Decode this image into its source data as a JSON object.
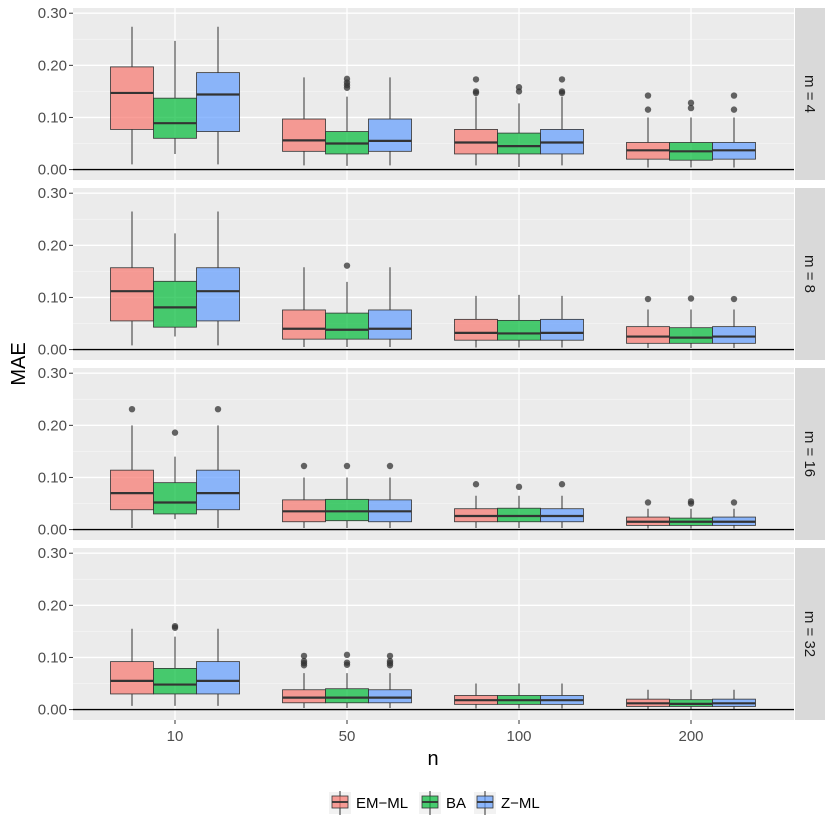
{
  "chart_data": {
    "type": "boxplot",
    "xlabel": "n",
    "ylabel": "MAE",
    "ylim": [
      -0.02,
      0.31
    ],
    "yticks": [
      "0.00",
      "0.10",
      "0.20",
      "0.30"
    ],
    "ytick_values": [
      0.0,
      0.1,
      0.2,
      0.3
    ],
    "categories": [
      "10",
      "50",
      "100",
      "200"
    ],
    "legend_position": "bottom",
    "grid": true,
    "series": [
      {
        "name": "EM−ML",
        "color": "#F8766D"
      },
      {
        "name": "BA",
        "color": "#00BA38"
      },
      {
        "name": "Z−ML",
        "color": "#619CFF"
      }
    ],
    "panels": [
      {
        "label": "m = 4",
        "groups": [
          [
            {
              "min": 0.01,
              "q1": 0.077,
              "median": 0.147,
              "q3": 0.197,
              "max": 0.274,
              "outliers": []
            },
            {
              "min": 0.03,
              "q1": 0.06,
              "median": 0.089,
              "q3": 0.137,
              "max": 0.247,
              "outliers": []
            },
            {
              "min": 0.01,
              "q1": 0.073,
              "median": 0.144,
              "q3": 0.186,
              "max": 0.274,
              "outliers": []
            }
          ],
          [
            {
              "min": 0.008,
              "q1": 0.035,
              "median": 0.056,
              "q3": 0.097,
              "max": 0.177,
              "outliers": []
            },
            {
              "min": 0.007,
              "q1": 0.03,
              "median": 0.05,
              "q3": 0.073,
              "max": 0.14,
              "outliers": [
                0.157,
                0.162,
                0.167,
                0.174
              ]
            },
            {
              "min": 0.008,
              "q1": 0.035,
              "median": 0.055,
              "q3": 0.097,
              "max": 0.177,
              "outliers": []
            }
          ],
          [
            {
              "min": 0.008,
              "q1": 0.03,
              "median": 0.052,
              "q3": 0.077,
              "max": 0.14,
              "outliers": [
                0.147,
                0.15,
                0.173
              ]
            },
            {
              "min": 0.005,
              "q1": 0.03,
              "median": 0.045,
              "q3": 0.07,
              "max": 0.127,
              "outliers": [
                0.15,
                0.158
              ]
            },
            {
              "min": 0.008,
              "q1": 0.03,
              "median": 0.052,
              "q3": 0.077,
              "max": 0.14,
              "outliers": [
                0.147,
                0.15,
                0.173
              ]
            }
          ],
          [
            {
              "min": 0.004,
              "q1": 0.02,
              "median": 0.037,
              "q3": 0.052,
              "max": 0.1,
              "outliers": [
                0.115,
                0.142
              ]
            },
            {
              "min": 0.004,
              "q1": 0.018,
              "median": 0.035,
              "q3": 0.052,
              "max": 0.1,
              "outliers": [
                0.118,
                0.128
              ]
            },
            {
              "min": 0.004,
              "q1": 0.02,
              "median": 0.037,
              "q3": 0.052,
              "max": 0.1,
              "outliers": [
                0.115,
                0.142
              ]
            }
          ]
        ]
      },
      {
        "label": "m = 8",
        "groups": [
          [
            {
              "min": 0.008,
              "q1": 0.055,
              "median": 0.112,
              "q3": 0.157,
              "max": 0.265,
              "outliers": []
            },
            {
              "min": 0.025,
              "q1": 0.043,
              "median": 0.081,
              "q3": 0.131,
              "max": 0.223,
              "outliers": []
            },
            {
              "min": 0.008,
              "q1": 0.055,
              "median": 0.112,
              "q3": 0.157,
              "max": 0.265,
              "outliers": []
            }
          ],
          [
            {
              "min": 0.005,
              "q1": 0.02,
              "median": 0.04,
              "q3": 0.076,
              "max": 0.158,
              "outliers": []
            },
            {
              "min": 0.005,
              "q1": 0.02,
              "median": 0.038,
              "q3": 0.07,
              "max": 0.13,
              "outliers": [
                0.161
              ]
            },
            {
              "min": 0.005,
              "q1": 0.02,
              "median": 0.04,
              "q3": 0.076,
              "max": 0.158,
              "outliers": []
            }
          ],
          [
            {
              "min": 0.004,
              "q1": 0.018,
              "median": 0.032,
              "q3": 0.058,
              "max": 0.103,
              "outliers": []
            },
            {
              "min": 0.004,
              "q1": 0.018,
              "median": 0.031,
              "q3": 0.056,
              "max": 0.105,
              "outliers": []
            },
            {
              "min": 0.004,
              "q1": 0.018,
              "median": 0.032,
              "q3": 0.058,
              "max": 0.103,
              "outliers": []
            }
          ],
          [
            {
              "min": 0.003,
              "q1": 0.012,
              "median": 0.025,
              "q3": 0.044,
              "max": 0.077,
              "outliers": [
                0.097
              ]
            },
            {
              "min": 0.003,
              "q1": 0.012,
              "median": 0.023,
              "q3": 0.042,
              "max": 0.077,
              "outliers": [
                0.098
              ]
            },
            {
              "min": 0.003,
              "q1": 0.012,
              "median": 0.025,
              "q3": 0.044,
              "max": 0.077,
              "outliers": [
                0.097
              ]
            }
          ]
        ]
      },
      {
        "label": "m = 16",
        "groups": [
          [
            {
              "min": 0.003,
              "q1": 0.038,
              "median": 0.07,
              "q3": 0.114,
              "max": 0.2,
              "outliers": [
                0.231
              ]
            },
            {
              "min": 0.02,
              "q1": 0.03,
              "median": 0.052,
              "q3": 0.09,
              "max": 0.14,
              "outliers": [
                0.186
              ]
            },
            {
              "min": 0.003,
              "q1": 0.038,
              "median": 0.07,
              "q3": 0.114,
              "max": 0.2,
              "outliers": [
                0.231
              ]
            }
          ],
          [
            {
              "min": 0.003,
              "q1": 0.015,
              "median": 0.035,
              "q3": 0.057,
              "max": 0.1,
              "outliers": [
                0.122
              ]
            },
            {
              "min": 0.003,
              "q1": 0.017,
              "median": 0.035,
              "q3": 0.058,
              "max": 0.1,
              "outliers": [
                0.122
              ]
            },
            {
              "min": 0.003,
              "q1": 0.015,
              "median": 0.035,
              "q3": 0.057,
              "max": 0.1,
              "outliers": [
                0.122
              ]
            }
          ],
          [
            {
              "min": 0.003,
              "q1": 0.015,
              "median": 0.026,
              "q3": 0.04,
              "max": 0.065,
              "outliers": [
                0.087
              ]
            },
            {
              "min": 0.003,
              "q1": 0.015,
              "median": 0.026,
              "q3": 0.041,
              "max": 0.065,
              "outliers": [
                0.082
              ]
            },
            {
              "min": 0.003,
              "q1": 0.015,
              "median": 0.026,
              "q3": 0.04,
              "max": 0.065,
              "outliers": [
                0.087
              ]
            }
          ],
          [
            {
              "min": 0.002,
              "q1": 0.008,
              "median": 0.015,
              "q3": 0.024,
              "max": 0.04,
              "outliers": [
                0.052
              ]
            },
            {
              "min": 0.002,
              "q1": 0.008,
              "median": 0.015,
              "q3": 0.022,
              "max": 0.04,
              "outliers": [
                0.05,
                0.054
              ]
            },
            {
              "min": 0.002,
              "q1": 0.008,
              "median": 0.015,
              "q3": 0.024,
              "max": 0.04,
              "outliers": [
                0.052
              ]
            }
          ]
        ]
      },
      {
        "label": "m = 32",
        "groups": [
          [
            {
              "min": 0.007,
              "q1": 0.03,
              "median": 0.055,
              "q3": 0.092,
              "max": 0.155,
              "outliers": []
            },
            {
              "min": 0.007,
              "q1": 0.03,
              "median": 0.048,
              "q3": 0.079,
              "max": 0.14,
              "outliers": [
                0.157,
                0.16
              ]
            },
            {
              "min": 0.007,
              "q1": 0.03,
              "median": 0.055,
              "q3": 0.092,
              "max": 0.155,
              "outliers": []
            }
          ],
          [
            {
              "min": 0.003,
              "q1": 0.013,
              "median": 0.023,
              "q3": 0.038,
              "max": 0.07,
              "outliers": [
                0.085,
                0.089,
                0.093,
                0.103
              ]
            },
            {
              "min": 0.003,
              "q1": 0.013,
              "median": 0.023,
              "q3": 0.04,
              "max": 0.07,
              "outliers": [
                0.086,
                0.09,
                0.105
              ]
            },
            {
              "min": 0.003,
              "q1": 0.013,
              "median": 0.023,
              "q3": 0.038,
              "max": 0.07,
              "outliers": [
                0.085,
                0.089,
                0.093,
                0.103
              ]
            }
          ],
          [
            {
              "min": 0.002,
              "q1": 0.01,
              "median": 0.018,
              "q3": 0.027,
              "max": 0.05,
              "outliers": []
            },
            {
              "min": 0.002,
              "q1": 0.01,
              "median": 0.018,
              "q3": 0.027,
              "max": 0.05,
              "outliers": []
            },
            {
              "min": 0.002,
              "q1": 0.01,
              "median": 0.018,
              "q3": 0.027,
              "max": 0.05,
              "outliers": []
            }
          ],
          [
            {
              "min": 0.001,
              "q1": 0.006,
              "median": 0.012,
              "q3": 0.02,
              "max": 0.038,
              "outliers": []
            },
            {
              "min": 0.001,
              "q1": 0.006,
              "median": 0.011,
              "q3": 0.019,
              "max": 0.038,
              "outliers": []
            },
            {
              "min": 0.001,
              "q1": 0.006,
              "median": 0.012,
              "q3": 0.02,
              "max": 0.038,
              "outliers": []
            }
          ]
        ]
      }
    ]
  }
}
